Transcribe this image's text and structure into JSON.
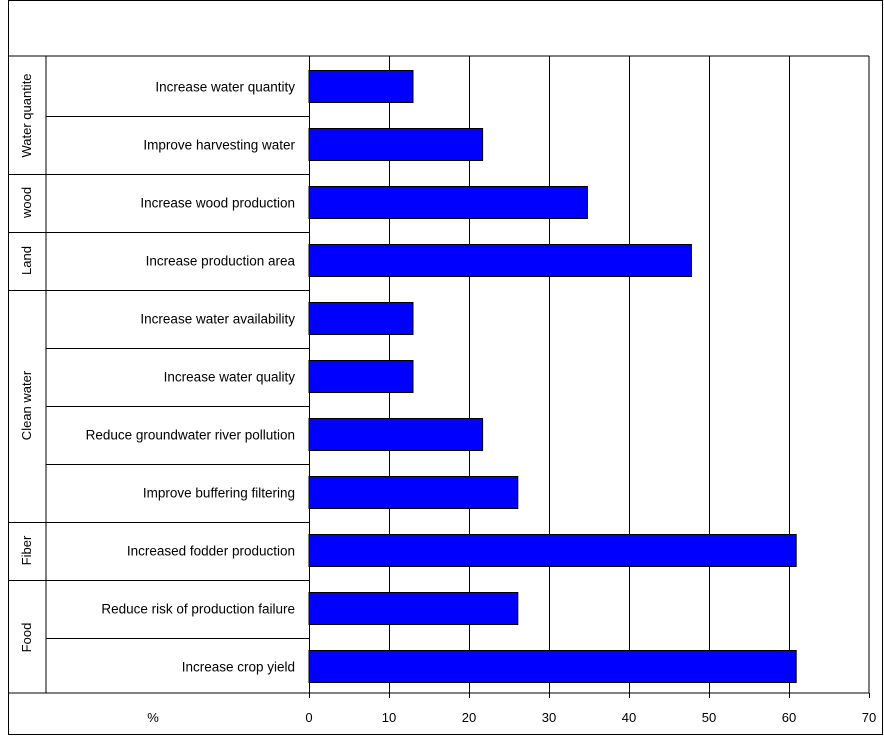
{
  "chart_data": {
    "type": "bar",
    "orientation": "horizontal",
    "xlabel": "%",
    "xlim": [
      0,
      70
    ],
    "xticks": [
      0,
      10,
      20,
      30,
      40,
      50,
      60,
      70
    ],
    "grid": "vertical",
    "bar_color": "#0000FF",
    "groups": [
      {
        "name": "Water quantite",
        "categories": [
          "Increase water quantity",
          "Improve harvesting water"
        ]
      },
      {
        "name": "wood",
        "categories": [
          "Increase wood production"
        ]
      },
      {
        "name": "Land",
        "categories": [
          "Increase production area"
        ]
      },
      {
        "name": "Clean water",
        "categories": [
          "Increase water availability",
          "Increase water quality",
          "Reduce groundwater river pollution",
          "Improve buffering filtering"
        ]
      },
      {
        "name": "Fiber",
        "categories": [
          "Increased fodder production"
        ]
      },
      {
        "name": "Food",
        "categories": [
          "Reduce risk of production failure",
          "Increase crop yield"
        ]
      }
    ],
    "categories": [
      "Increase water quantity",
      "Improve harvesting water",
      "Increase wood production",
      "Increase production area",
      "Increase water availability",
      "Increase water quality",
      "Reduce groundwater river pollution",
      "Improve buffering filtering",
      "Increased fodder production",
      "Reduce risk of production failure",
      "Increase crop yield"
    ],
    "values": [
      13,
      21.7,
      34.8,
      47.8,
      13,
      13,
      21.7,
      26.1,
      60.9,
      26.1,
      60.9
    ]
  }
}
